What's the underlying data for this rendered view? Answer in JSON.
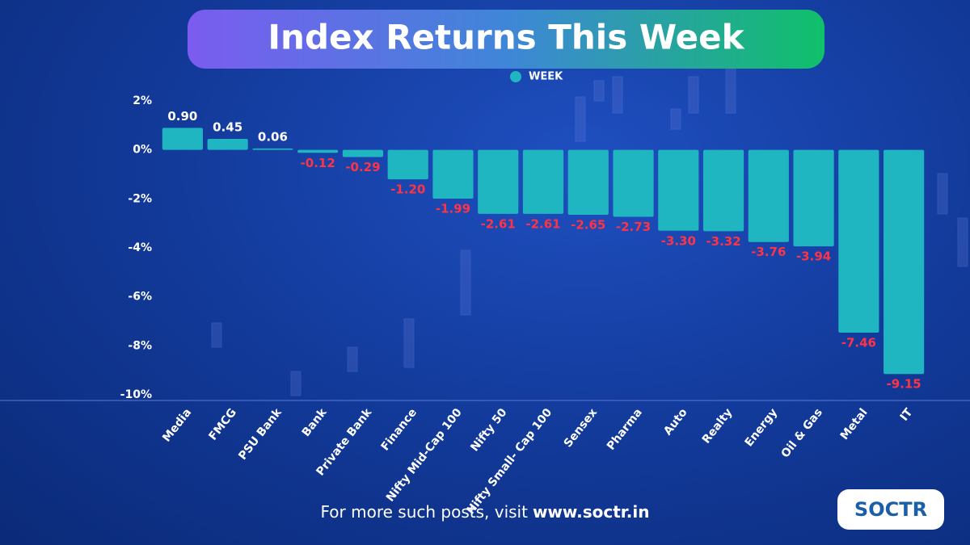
{
  "chart_data": {
    "type": "bar",
    "title": "Index Returns This Week",
    "categories": [
      "Media",
      "FMCG",
      "PSU Bank",
      "Bank",
      "Private Bank",
      "Finance",
      "Nifty Mid-Cap 100",
      "Nifty 50",
      "Nifty Small- Cap 100",
      "Sensex",
      "Pharma",
      "Auto",
      "Realty",
      "Energy",
      "Oil & Gas",
      "Metal",
      "IT"
    ],
    "series": [
      {
        "name": "WEEK",
        "color": "#1fb5c1",
        "values": [
          0.9,
          0.45,
          0.06,
          -0.12,
          -0.29,
          -1.2,
          -1.99,
          -2.61,
          -2.61,
          -2.65,
          -2.73,
          -3.3,
          -3.32,
          -3.76,
          -3.94,
          -7.46,
          -9.15
        ],
        "value_labels": [
          "0.90",
          "0.45",
          "0.06",
          "-0.12",
          "-0.29",
          "-1.20",
          "-1.99",
          "-2.61",
          "-2.61",
          "-2.65",
          "-2.73",
          "-3.30",
          "-3.32",
          "-3.76",
          "-3.94",
          "-7.46",
          "-9.15"
        ]
      }
    ],
    "ylim": [
      -10,
      2
    ],
    "yticks": [
      {
        "value": 2,
        "label": "2%"
      },
      {
        "value": 0,
        "label": "0%"
      },
      {
        "value": -2,
        "label": "-2%"
      },
      {
        "value": -4,
        "label": "-4%"
      },
      {
        "value": -6,
        "label": "-6%"
      },
      {
        "value": -8,
        "label": "-8%"
      },
      {
        "value": -10,
        "label": "-10%"
      }
    ],
    "grid": false
  },
  "footer": {
    "text": "For more such posts, visit",
    "link": "www.soctr.in"
  },
  "logo": "SOCTR"
}
